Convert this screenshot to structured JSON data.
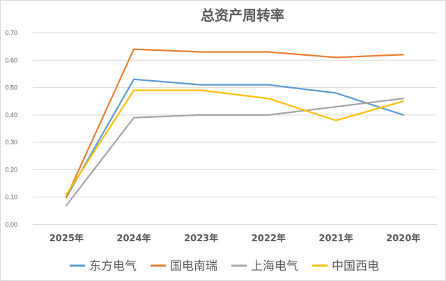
{
  "chart_data": {
    "type": "line",
    "title": "总资产周转率",
    "xlabel": "",
    "ylabel": "",
    "categories": [
      "2025年",
      "2024年",
      "2023年",
      "2022年",
      "2021年",
      "2020年"
    ],
    "ylim": [
      0,
      0.7
    ],
    "yticks": [
      "0.00",
      "0.10",
      "0.20",
      "0.30",
      "0.40",
      "0.50",
      "0.60",
      "0.70"
    ],
    "grid": true,
    "legend_position": "bottom",
    "series": [
      {
        "name": "东方电气",
        "color": "#5b9bd5",
        "values": [
          0.1,
          0.53,
          0.51,
          0.51,
          0.48,
          0.4
        ]
      },
      {
        "name": "国电南瑞",
        "color": "#ed7d31",
        "values": [
          0.1,
          0.64,
          0.63,
          0.63,
          0.61,
          0.62
        ]
      },
      {
        "name": "上海电气",
        "color": "#a5a5a5",
        "values": [
          0.07,
          0.39,
          0.4,
          0.4,
          0.43,
          0.46
        ]
      },
      {
        "name": "中国西电",
        "color": "#ffc000",
        "values": [
          0.11,
          0.49,
          0.49,
          0.46,
          0.38,
          0.45
        ]
      }
    ]
  }
}
